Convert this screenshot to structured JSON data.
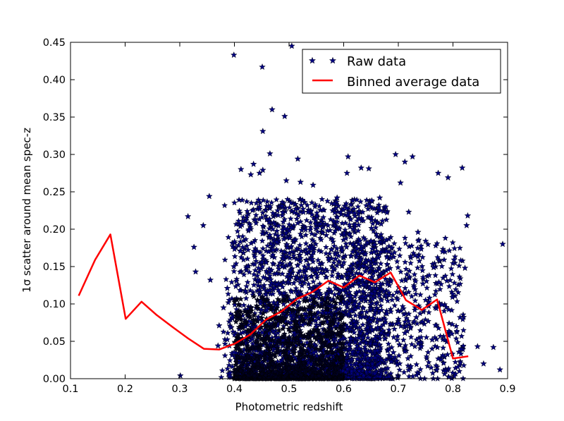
{
  "chart_data": {
    "type": "scatter",
    "xlabel": "Photometric redshift",
    "ylabel": "1σ scatter around mean spec-z",
    "xlim": [
      0.1,
      0.9
    ],
    "ylim": [
      0.0,
      0.45
    ],
    "x_ticks": [
      "0.1",
      "0.2",
      "0.3",
      "0.4",
      "0.5",
      "0.6",
      "0.7",
      "0.8",
      "0.9"
    ],
    "y_ticks": [
      "0.00",
      "0.05",
      "0.10",
      "0.15",
      "0.20",
      "0.25",
      "0.30",
      "0.35",
      "0.40",
      "0.45"
    ],
    "grid": false,
    "legend_position": "top-right",
    "series": [
      {
        "name": "Raw data",
        "kind": "scatter",
        "marker": "star",
        "color": "#00007f",
        "points": [
          [
            0.399,
            0.433
          ],
          [
            0.505,
            0.445
          ],
          [
            0.451,
            0.417
          ],
          [
            0.469,
            0.36
          ],
          [
            0.492,
            0.351
          ],
          [
            0.452,
            0.331
          ],
          [
            0.465,
            0.301
          ],
          [
            0.516,
            0.294
          ],
          [
            0.412,
            0.28
          ],
          [
            0.435,
            0.287
          ],
          [
            0.43,
            0.273
          ],
          [
            0.446,
            0.275
          ],
          [
            0.452,
            0.279
          ],
          [
            0.608,
            0.297
          ],
          [
            0.632,
            0.282
          ],
          [
            0.646,
            0.281
          ],
          [
            0.695,
            0.3
          ],
          [
            0.712,
            0.29
          ],
          [
            0.726,
            0.297
          ],
          [
            0.817,
            0.282
          ],
          [
            0.773,
            0.275
          ],
          [
            0.791,
            0.269
          ],
          [
            0.606,
            0.275
          ],
          [
            0.315,
            0.217
          ],
          [
            0.354,
            0.244
          ],
          [
            0.343,
            0.205
          ],
          [
            0.326,
            0.176
          ],
          [
            0.329,
            0.143
          ],
          [
            0.356,
            0.132
          ],
          [
            0.301,
            0.004
          ],
          [
            0.37,
            0.044
          ],
          [
            0.825,
            0.205
          ],
          [
            0.827,
            0.218
          ],
          [
            0.845,
            0.043
          ],
          [
            0.874,
            0.042
          ],
          [
            0.856,
            0.02
          ],
          [
            0.886,
            0.012
          ],
          [
            0.891,
            0.18
          ],
          [
            0.762,
            0.052
          ],
          [
            0.798,
            0.06
          ],
          [
            0.813,
            0.082
          ],
          [
            0.781,
            0.17
          ],
          [
            0.802,
            0.159
          ],
          [
            0.822,
            0.148
          ],
          [
            0.736,
            0.196
          ],
          [
            0.75,
            0.184
          ],
          [
            0.719,
            0.223
          ],
          [
            0.666,
            0.242
          ],
          [
            0.704,
            0.262
          ],
          [
            0.588,
            0.242
          ],
          [
            0.544,
            0.259
          ],
          [
            0.521,
            0.263
          ],
          [
            0.495,
            0.265
          ],
          [
            0.411,
            0.171
          ],
          [
            0.399,
            0.15
          ],
          [
            0.387,
            0.121
          ],
          [
            0.38,
            0.095
          ],
          [
            0.372,
            0.071
          ],
          [
            0.585,
            0.16
          ],
          [
            0.636,
            0.126
          ],
          [
            0.679,
            0.087
          ],
          [
            0.712,
            0.061
          ],
          [
            0.742,
            0.043
          ],
          [
            0.691,
            0.035
          ],
          [
            0.661,
            0.051
          ],
          [
            0.745,
            0.127
          ],
          [
            0.765,
            0.149
          ],
          [
            0.757,
            0.108
          ],
          [
            0.78,
            0.099
          ],
          [
            0.733,
            0.082
          ]
        ]
      },
      {
        "name": "Binned average data",
        "kind": "line",
        "color": "#ff0000",
        "points": [
          [
            0.115,
            0.111
          ],
          [
            0.145,
            0.159
          ],
          [
            0.173,
            0.193
          ],
          [
            0.201,
            0.08
          ],
          [
            0.23,
            0.103
          ],
          [
            0.258,
            0.085
          ],
          [
            0.287,
            0.069
          ],
          [
            0.315,
            0.054
          ],
          [
            0.344,
            0.04
          ],
          [
            0.372,
            0.039
          ],
          [
            0.401,
            0.047
          ],
          [
            0.429,
            0.059
          ],
          [
            0.458,
            0.079
          ],
          [
            0.486,
            0.09
          ],
          [
            0.515,
            0.107
          ],
          [
            0.543,
            0.116
          ],
          [
            0.572,
            0.131
          ],
          [
            0.6,
            0.122
          ],
          [
            0.629,
            0.138
          ],
          [
            0.657,
            0.129
          ],
          [
            0.686,
            0.142
          ],
          [
            0.714,
            0.105
          ],
          [
            0.743,
            0.092
          ],
          [
            0.771,
            0.106
          ],
          [
            0.8,
            0.027
          ],
          [
            0.828,
            0.03
          ]
        ]
      }
    ]
  }
}
